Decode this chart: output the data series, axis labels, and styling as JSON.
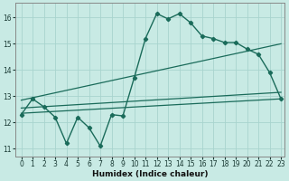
{
  "xlabel": "Humidex (Indice chaleur)",
  "background_color": "#c8eae4",
  "grid_color": "#a8d4ce",
  "line_color": "#1a6b5a",
  "x_min": -0.5,
  "x_max": 23.3,
  "y_min": 10.7,
  "y_max": 16.55,
  "yticks": [
    11,
    12,
    13,
    14,
    15,
    16
  ],
  "xticks": [
    0,
    1,
    2,
    3,
    4,
    5,
    6,
    7,
    8,
    9,
    10,
    11,
    12,
    13,
    14,
    15,
    16,
    17,
    18,
    19,
    20,
    21,
    22,
    23
  ],
  "line1_x": [
    0,
    1,
    2,
    3,
    4,
    5,
    6,
    7,
    8,
    9,
    10,
    11,
    12,
    13,
    14,
    15,
    16,
    17,
    18,
    19,
    20,
    21,
    22,
    23
  ],
  "line1_y": [
    12.3,
    12.9,
    12.6,
    12.2,
    11.2,
    12.2,
    11.8,
    11.1,
    12.3,
    12.25,
    13.7,
    15.2,
    16.15,
    15.95,
    16.15,
    15.8,
    15.3,
    15.2,
    15.05,
    15.05,
    14.8,
    14.6,
    13.9,
    12.9
  ],
  "line2_x": [
    0,
    23
  ],
  "line2_y": [
    12.35,
    12.9
  ],
  "line3_x": [
    0,
    23
  ],
  "line3_y": [
    12.55,
    13.15
  ],
  "line4_x": [
    0,
    23
  ],
  "line4_y": [
    12.85,
    15.0
  ]
}
